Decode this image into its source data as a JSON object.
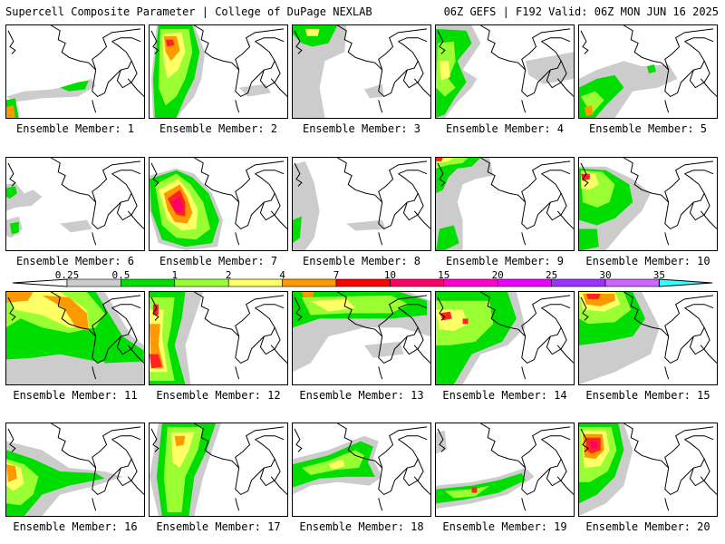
{
  "header": {
    "left": "Supercell Composite Parameter | College of DuPage NEXLAB",
    "right": "06Z GEFS | F192 Valid: 06Z MON JUN 16 2025"
  },
  "colorbar": {
    "ticks": [
      "0.25",
      "0.5",
      "1",
      "2",
      "4",
      "7",
      "10",
      "15",
      "20",
      "25",
      "30",
      "35"
    ],
    "colors": [
      "#cccccc",
      "#00e000",
      "#99ff33",
      "#ffff66",
      "#ff9900",
      "#ff0000",
      "#ff0066",
      "#ff00cc",
      "#ee00ff",
      "#9933ff",
      "#cc66ff",
      "#33ffff"
    ]
  },
  "members": [
    {
      "label": "Ensemble Member: 1"
    },
    {
      "label": "Ensemble Member: 2"
    },
    {
      "label": "Ensemble Member: 3"
    },
    {
      "label": "Ensemble Member: 4"
    },
    {
      "label": "Ensemble Member: 5"
    },
    {
      "label": "Ensemble Member: 6"
    },
    {
      "label": "Ensemble Member: 7"
    },
    {
      "label": "Ensemble Member: 8"
    },
    {
      "label": "Ensemble Member: 9"
    },
    {
      "label": "Ensemble Member: 10"
    },
    {
      "label": "Ensemble Member: 11"
    },
    {
      "label": "Ensemble Member: 12"
    },
    {
      "label": "Ensemble Member: 13"
    },
    {
      "label": "Ensemble Member: 14"
    },
    {
      "label": "Ensemble Member: 15"
    },
    {
      "label": "Ensemble Member: 16"
    },
    {
      "label": "Ensemble Member: 17"
    },
    {
      "label": "Ensemble Member: 18"
    },
    {
      "label": "Ensemble Member: 19"
    },
    {
      "label": "Ensemble Member: 20"
    }
  ]
}
